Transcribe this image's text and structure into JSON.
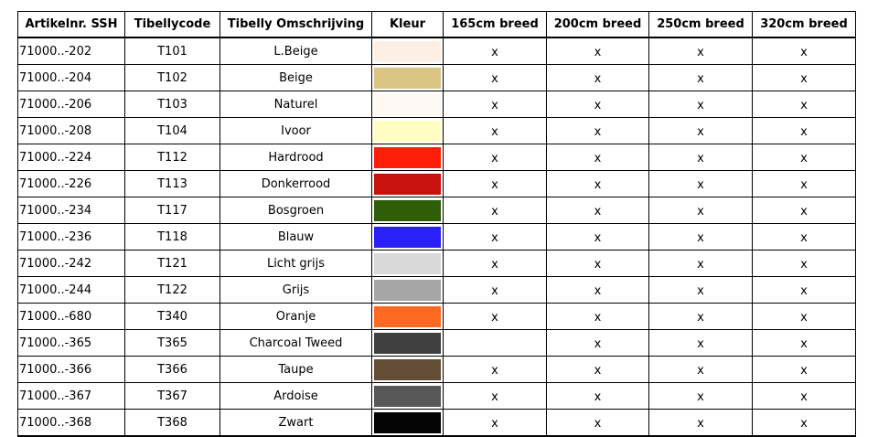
{
  "headers": [
    "Artikelnr. SSH",
    "Tibellycode",
    "Tibelly Omschrijving",
    "Kleur",
    "165cm breed",
    "200cm breed",
    "250cm breed",
    "320cm breed"
  ],
  "rows": [
    {
      "art": "71000..-202",
      "code": "T101",
      "desc": "L.Beige",
      "color": "#FDEFE3",
      "w165": "x",
      "w200": "x",
      "w250": "x",
      "w320": "x"
    },
    {
      "art": "71000..-204",
      "code": "T102",
      "desc": "Beige",
      "color": "#DCC484",
      "w165": "x",
      "w200": "x",
      "w250": "x",
      "w320": "x"
    },
    {
      "art": "71000..-206",
      "code": "T103",
      "desc": "Naturel",
      "color": "#FFF8F3",
      "w165": "x",
      "w200": "x",
      "w250": "x",
      "w320": "x"
    },
    {
      "art": "71000..-208",
      "code": "T104",
      "desc": "Ivoor",
      "color": "#FFFDC2",
      "w165": "x",
      "w200": "x",
      "w250": "x",
      "w320": "x"
    },
    {
      "art": "71000..-224",
      "code": "T112",
      "desc": "Hardrood",
      "color": "#FF1E0A",
      "w165": "x",
      "w200": "x",
      "w250": "x",
      "w320": "x"
    },
    {
      "art": "71000..-226",
      "code": "T113",
      "desc": "Donkerrood",
      "color": "#C8120E",
      "w165": "x",
      "w200": "x",
      "w250": "x",
      "w320": "x"
    },
    {
      "art": "71000..-234",
      "code": "T117",
      "desc": "Bosgroen",
      "color": "#2E5E08",
      "w165": "x",
      "w200": "x",
      "w250": "x",
      "w320": "x"
    },
    {
      "art": "71000..-236",
      "code": "T118",
      "desc": "Blauw",
      "color": "#2A20F8",
      "w165": "x",
      "w200": "x",
      "w250": "x",
      "w320": "x"
    },
    {
      "art": "71000..-242",
      "code": "T121",
      "desc": "Licht grijs",
      "color": "#D9D9D9",
      "w165": "x",
      "w200": "x",
      "w250": "x",
      "w320": "x"
    },
    {
      "art": "71000..-244",
      "code": "T122",
      "desc": "Grijs",
      "color": "#A6A6A6",
      "w165": "x",
      "w200": "x",
      "w250": "x",
      "w320": "x"
    },
    {
      "art": "71000..-680",
      "code": "T340",
      "desc": "Oranje",
      "color": "#FF6A22",
      "w165": "x",
      "w200": "x",
      "w250": "x",
      "w320": "x"
    },
    {
      "art": "71000..-365",
      "code": "T365",
      "desc": "Charcoal Tweed",
      "color": "#404040",
      "w165": "",
      "w200": "x",
      "w250": "x",
      "w320": "x"
    },
    {
      "art": "71000..-366",
      "code": "T366",
      "desc": "Taupe",
      "color": "#644E38",
      "w165": "x",
      "w200": "x",
      "w250": "x",
      "w320": "x"
    },
    {
      "art": "71000..-367",
      "code": "T367",
      "desc": "Ardoise",
      "color": "#575757",
      "w165": "x",
      "w200": "x",
      "w250": "x",
      "w320": "x"
    },
    {
      "art": "71000..-368",
      "code": "T368",
      "desc": "Zwart",
      "color": "#050505",
      "w165": "x",
      "w200": "x",
      "w250": "x",
      "w320": "x"
    }
  ]
}
